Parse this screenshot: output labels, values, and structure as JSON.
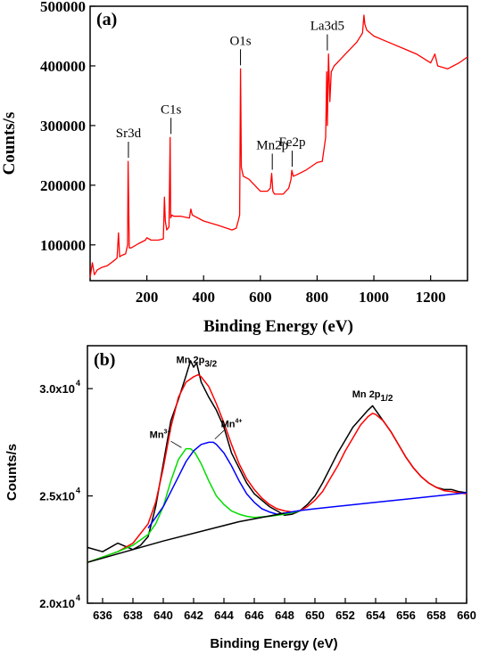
{
  "chart_data": [
    {
      "panel_label": "(a)",
      "type": "line",
      "xlabel": "Binding Energy (eV)",
      "ylabel": "Counts/s",
      "xlim": [
        0,
        1330
      ],
      "ylim": [
        40000,
        500000
      ],
      "x_ticks": [
        200,
        400,
        600,
        800,
        1000,
        1200
      ],
      "x_tick_labels": [
        "200",
        "400",
        "600",
        "800",
        "1000",
        "1200"
      ],
      "y_ticks": [
        100000,
        200000,
        300000,
        400000,
        500000
      ],
      "y_tick_labels": [
        "100000",
        "200000",
        "300000",
        "400000",
        "500000"
      ],
      "series_color": "#ff0000",
      "series": [
        {
          "x": [
            0,
            8,
            15,
            25,
            40,
            60,
            80,
            95,
            100,
            104,
            110,
            125,
            132,
            134,
            138,
            145,
            170,
            195,
            200,
            215,
            240,
            258,
            262,
            265,
            270,
            278,
            282,
            284,
            288,
            295,
            320,
            350,
            355,
            360,
            400,
            450,
            500,
            515,
            522,
            527,
            530,
            533,
            540,
            560,
            600,
            625,
            635,
            640,
            644,
            650,
            680,
            700,
            708,
            711,
            716,
            730,
            760,
            800,
            818,
            830,
            834,
            836,
            840,
            845,
            850,
            860,
            880,
            900,
            920,
            940,
            960,
            965,
            968,
            975,
            1000,
            1050,
            1100,
            1150,
            1200,
            1215,
            1225,
            1260,
            1300,
            1330
          ],
          "y": [
            45000,
            70000,
            50000,
            58000,
            62000,
            65000,
            72000,
            78000,
            120000,
            80000,
            82000,
            85000,
            100000,
            240000,
            95000,
            95000,
            102000,
            108000,
            112000,
            108000,
            108000,
            110000,
            180000,
            140000,
            125000,
            130000,
            280000,
            145000,
            150000,
            148000,
            148000,
            145000,
            160000,
            150000,
            140000,
            133000,
            125000,
            128000,
            140000,
            150000,
            395000,
            230000,
            215000,
            210000,
            190000,
            190000,
            195000,
            220000,
            190000,
            185000,
            185000,
            195000,
            210000,
            225000,
            215000,
            218000,
            225000,
            238000,
            240000,
            280000,
            390000,
            300000,
            420000,
            340000,
            390000,
            400000,
            410000,
            420000,
            430000,
            440000,
            455000,
            485000,
            470000,
            460000,
            450000,
            440000,
            430000,
            420000,
            405000,
            420000,
            400000,
            395000,
            405000,
            415000
          ]
        }
      ],
      "annotations": [
        {
          "text": "Sr3d",
          "x": 135,
          "y": 240000
        },
        {
          "text": "C1s",
          "x": 285,
          "y": 280000
        },
        {
          "text": "O1s",
          "x": 530,
          "y": 395000
        },
        {
          "text": "Mn2p",
          "x": 642,
          "y": 220000
        },
        {
          "text": "Fe2p",
          "x": 712,
          "y": 225000
        },
        {
          "text": "La3d5",
          "x": 836,
          "y": 420000
        }
      ]
    },
    {
      "panel_label": "(b)",
      "type": "line",
      "xlabel": "Binding Energy (eV)",
      "ylabel": "Counts/s",
      "xlim": [
        635,
        660
      ],
      "ylim": [
        20000,
        32000
      ],
      "x_ticks": [
        636,
        638,
        640,
        642,
        644,
        646,
        648,
        650,
        652,
        654,
        656,
        658,
        660
      ],
      "x_tick_labels": [
        "636",
        "638",
        "640",
        "642",
        "644",
        "646",
        "648",
        "650",
        "652",
        "654",
        "656",
        "658",
        "660"
      ],
      "y_ticks": [
        20000,
        25000,
        30000
      ],
      "y_tick_labels": [
        "2.0x10",
        "2.5x10",
        "3.0x10"
      ],
      "y_tick_exponent": "4",
      "annotations": [
        {
          "text": "Mn 2p",
          "sub": "3/2",
          "x": 642.2,
          "y": 31200
        },
        {
          "text": "Mn 2p",
          "sub": "1/2",
          "x": 653.8,
          "y": 29600
        },
        {
          "text": "Mn",
          "sup": "3+",
          "x": 639.8,
          "y": 27700
        },
        {
          "text": "Mn",
          "sup": "4+",
          "x": 644.5,
          "y": 28200
        }
      ],
      "series": [
        {
          "color": "#000000",
          "x": [
            635,
            636,
            637,
            638,
            638.5,
            639,
            639.5,
            640,
            640.5,
            641,
            641.5,
            641.8,
            642,
            642.2,
            642.5,
            643,
            643.5,
            644,
            644.5,
            645,
            645.5,
            646,
            646.5,
            647,
            647.5,
            648,
            648.5,
            649,
            649.5,
            650,
            650.5,
            651,
            651.5,
            652,
            652.5,
            653,
            653.5,
            653.8,
            654,
            654.5,
            655,
            655.5,
            656,
            656.5,
            657,
            657.5,
            658,
            658.5,
            659,
            659.5,
            660
          ],
          "y": [
            22600,
            22400,
            22800,
            22500,
            22700,
            23100,
            24500,
            26500,
            28500,
            29500,
            30600,
            31300,
            31000,
            31200,
            30300,
            29600,
            29000,
            28200,
            27000,
            26300,
            25600,
            25100,
            24800,
            24500,
            24300,
            24100,
            24150,
            24300,
            24600,
            25000,
            25600,
            26300,
            27000,
            27600,
            28200,
            28600,
            29000,
            29200,
            29000,
            28500,
            28000,
            27400,
            26800,
            26300,
            25900,
            25600,
            25400,
            25300,
            25300,
            25200,
            25150
          ]
        },
        {
          "color": "#ff0000",
          "x": [
            635,
            636,
            637,
            638,
            639,
            639.5,
            640,
            640.5,
            641,
            641.5,
            642,
            642.3,
            642.5,
            643,
            643.5,
            644,
            644.5,
            645,
            645.5,
            646,
            646.5,
            647,
            647.5,
            648,
            648.5,
            649,
            649.5,
            650,
            650.5,
            651,
            651.5,
            652,
            652.5,
            653,
            653.5,
            653.8,
            654,
            654.5,
            655,
            655.5,
            656,
            656.5,
            657,
            657.5,
            658,
            658.5,
            659,
            659.5,
            660
          ],
          "y": [
            21900,
            22150,
            22400,
            22800,
            23700,
            24700,
            26300,
            28200,
            29600,
            30300,
            30550,
            30650,
            30550,
            30100,
            29300,
            28400,
            27400,
            26500,
            25800,
            25300,
            24900,
            24600,
            24400,
            24300,
            24250,
            24300,
            24500,
            24800,
            25200,
            25800,
            26400,
            27100,
            27700,
            28300,
            28700,
            28850,
            28800,
            28500,
            28000,
            27400,
            26800,
            26300,
            25900,
            25600,
            25400,
            25250,
            25200,
            25150,
            25100
          ]
        },
        {
          "color": "#00dd00",
          "x": [
            635,
            636,
            637,
            638,
            639,
            639.5,
            640,
            640.5,
            641,
            641.5,
            641.8,
            642.1,
            642.5,
            643,
            643.5,
            644,
            644.5,
            645,
            645.5,
            646,
            647,
            648,
            649
          ],
          "y": [
            21900,
            22150,
            22400,
            22700,
            23200,
            23700,
            24500,
            25700,
            26700,
            27200,
            27200,
            27000,
            26500,
            25700,
            25000,
            24600,
            24300,
            24150,
            24050,
            24000,
            24050,
            24150,
            24300
          ]
        },
        {
          "color": "#0000ff",
          "x": [
            639,
            639.5,
            640,
            640.5,
            641,
            641.5,
            642,
            642.5,
            643,
            643.3,
            643.5,
            644,
            644.5,
            645,
            645.5,
            646,
            646.5,
            647,
            647.5,
            648,
            649,
            650,
            652,
            654,
            656,
            658,
            660
          ],
          "y": [
            23500,
            24000,
            24500,
            25200,
            25900,
            26600,
            27100,
            27400,
            27500,
            27500,
            27400,
            27000,
            26400,
            25700,
            25100,
            24700,
            24400,
            24250,
            24150,
            24200,
            24320,
            24400,
            24550,
            24700,
            24850,
            25000,
            25150
          ]
        },
        {
          "color": "#000000",
          "x": [
            635,
            640,
            645,
            648
          ],
          "y": [
            21900,
            22900,
            23800,
            24200
          ]
        }
      ]
    }
  ]
}
